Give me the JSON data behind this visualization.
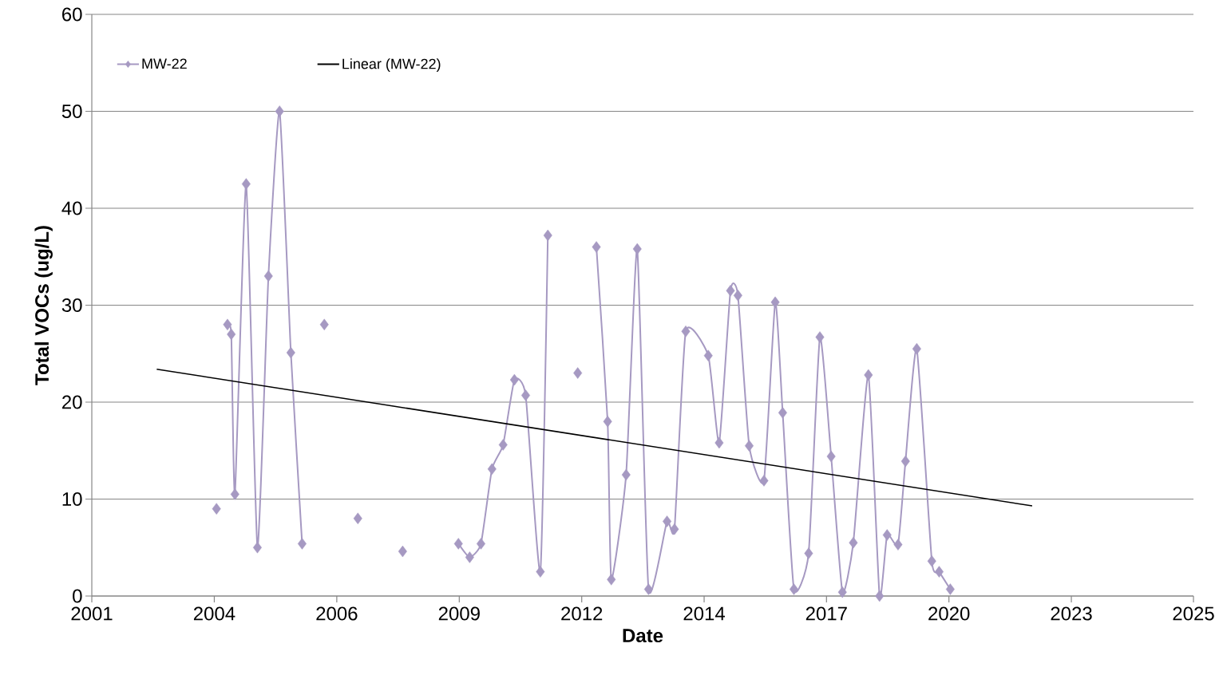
{
  "chart_data": {
    "type": "line",
    "xlabel": "Date",
    "ylabel": "Total VOCs (ug/L)",
    "xlim": [
      "2001-04-19",
      "2025-12-09"
    ],
    "xticks": [
      {
        "value": "2001-04-19",
        "label": "2001"
      },
      {
        "value": "2004-01-14",
        "label": "2004"
      },
      {
        "value": "2006-10-11",
        "label": "2006"
      },
      {
        "value": "2009-07-08",
        "label": "2009"
      },
      {
        "value": "2012-04-03",
        "label": "2012"
      },
      {
        "value": "2014-12-29",
        "label": "2014"
      },
      {
        "value": "2017-09-24",
        "label": "2017"
      },
      {
        "value": "2020-06-20",
        "label": "2020"
      },
      {
        "value": "2023-03-17",
        "label": "2023"
      },
      {
        "value": "2025-12-09",
        "label": "2025"
      }
    ],
    "ylim": [
      0,
      60
    ],
    "yticks": [
      0,
      10,
      20,
      30,
      40,
      50,
      60
    ],
    "grid": "y",
    "legend": "top left",
    "marker": "diamond",
    "series": [
      {
        "name": "MW-22",
        "color": "#a699c2",
        "x": [
          "2004-02",
          "2004-04",
          "2004-05",
          "2004-06",
          "2004-07",
          "2004-10",
          "2005-01",
          "2005-04",
          "2005-07",
          "2005-10",
          "2006-01",
          "2006-04",
          "2006-07",
          "2006-12",
          "2007-04",
          "2007-10",
          "2008-04",
          "2009-01",
          "2009-07",
          "2009-10",
          "2010-01",
          "2010-04",
          "2010-07",
          "2010-10",
          "2011-01",
          "2011-05",
          "2011-07",
          "2011-11",
          "2012-03",
          "2012-05",
          "2012-08",
          "2012-11",
          "2012-12",
          "2013-04",
          "2013-07",
          "2013-10",
          "2014-03",
          "2014-05",
          "2014-08",
          "2015-02",
          "2015-05",
          "2015-08",
          "2015-10",
          "2016-01",
          "2016-05",
          "2016-08",
          "2016-10",
          "2017-01",
          "2017-05",
          "2017-08",
          "2017-11",
          "2018-02",
          "2018-05",
          "2018-09",
          "2018-12",
          "2019-02",
          "2019-05",
          "2019-07",
          "2019-10",
          "2020-02",
          "2020-04",
          "2020-07"
        ],
        "values": [
          9.0,
          null,
          28.0,
          27.0,
          10.5,
          42.5,
          5.0,
          33.0,
          50.0,
          25.1,
          5.4,
          null,
          28.0,
          null,
          8.0,
          null,
          4.6,
          null,
          5.4,
          4.0,
          5.4,
          13.1,
          15.6,
          22.3,
          20.7,
          2.5,
          37.2,
          null,
          23.0,
          null,
          36.0,
          18.0,
          1.7,
          12.5,
          35.8,
          0.7,
          7.7,
          6.9,
          27.3,
          24.8,
          15.8,
          31.5,
          31.0,
          15.5,
          11.9,
          30.3,
          18.9,
          0.7,
          4.4,
          26.7,
          14.4,
          0.4,
          5.5,
          22.8,
          0.0,
          6.3,
          5.3,
          13.9,
          25.5,
          3.6,
          2.5,
          0.7
        ]
      },
      {
        "name": "Linear (MW-22)",
        "color": "#000000",
        "marker": "none",
        "x": [
          "2002-10",
          "2022-05"
        ],
        "values": [
          23.4,
          9.3
        ]
      }
    ]
  }
}
